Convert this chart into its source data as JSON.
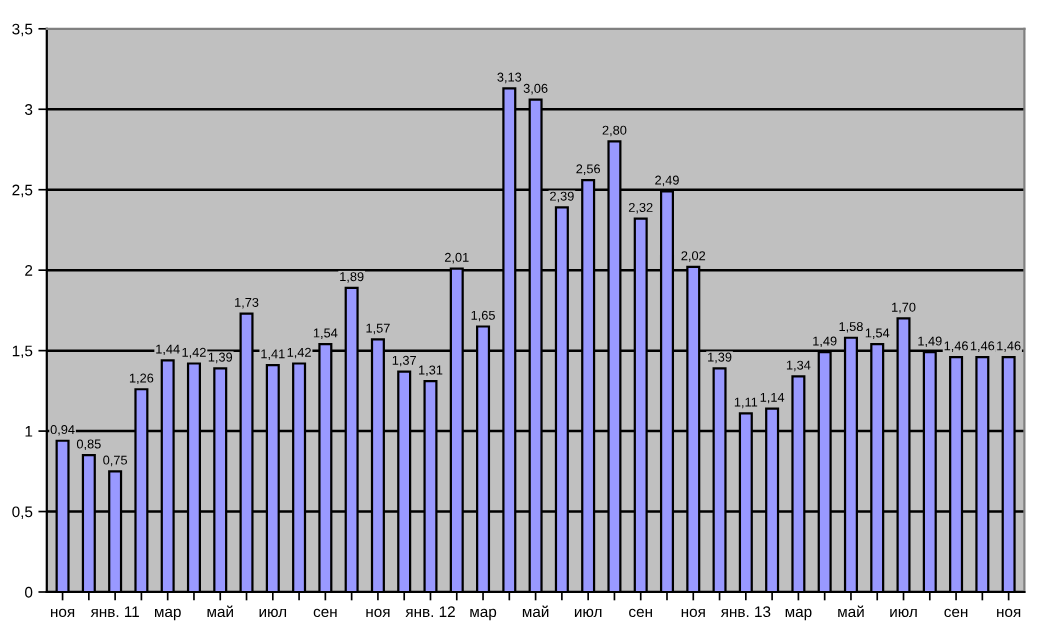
{
  "chart_data": {
    "type": "bar",
    "categories": [
      "ноя",
      null,
      "янв. 11",
      null,
      "мар",
      null,
      "май",
      null,
      "июл",
      null,
      "сен",
      null,
      "ноя",
      null,
      "янв. 12",
      null,
      "мар",
      null,
      "май",
      null,
      "июл",
      null,
      "сен",
      null,
      "ноя",
      null,
      "янв. 13",
      null,
      "мар",
      null,
      "май",
      null,
      "июл",
      null,
      "сен",
      null,
      "ноя"
    ],
    "values": [
      0.94,
      0.85,
      0.75,
      1.26,
      1.44,
      1.42,
      1.39,
      1.73,
      1.41,
      1.42,
      1.54,
      1.89,
      1.57,
      1.37,
      1.31,
      2.01,
      1.65,
      3.13,
      3.06,
      2.39,
      2.56,
      2.8,
      2.32,
      2.49,
      2.02,
      1.39,
      1.11,
      1.14,
      1.34,
      1.49,
      1.58,
      1.54,
      1.7,
      1.49,
      1.46,
      1.46,
      1.46
    ],
    "value_labels": [
      "0,94",
      "0,85",
      "0,75",
      "1,26",
      "1,44",
      "1,42",
      "1,39",
      "1,73",
      "1,41",
      "1,42",
      "1,54",
      "1,89",
      "1,57",
      "1,37",
      "1,31",
      "2,01",
      "1,65",
      "3,13",
      "3,06",
      "2,39",
      "2,56",
      "2,80",
      "2,32",
      "2,49",
      "2,02",
      "1,39",
      "1,11",
      "1,14",
      "1,34",
      "1,49",
      "1,58",
      "1,54",
      "1,70",
      "1,49",
      "1,46",
      "1,46",
      "1,46"
    ],
    "color": "#9999ff",
    "ylim": [
      0,
      3.5
    ],
    "yticks": [
      0,
      {
        "value": 0.5,
        "label": "0,5"
      },
      1,
      {
        "value": 1.5,
        "label": "1,5"
      },
      2,
      {
        "value": 2.5,
        "label": "2,5"
      },
      3,
      {
        "value": 3.5,
        "label": "3,5"
      }
    ],
    "grid": "y"
  }
}
